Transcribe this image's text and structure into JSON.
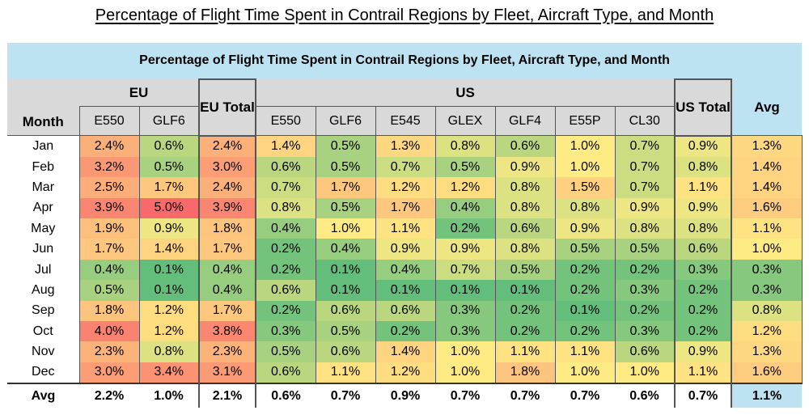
{
  "page_title": "Percentage of Flight Time Spent in Contrail Regions by Fleet, Aircraft Type, and Month",
  "chart_data": {
    "type": "table",
    "title": "Percentage of Flight Time Spent in Contrail Regions by Fleet, Aircraft Type, and Month",
    "headers": {
      "month": "Month",
      "eu_group": "EU",
      "us_group": "US",
      "eu_total": "EU Total",
      "us_total": "US Total",
      "avg": "Avg",
      "eu_types": [
        "E550",
        "GLF6"
      ],
      "us_types": [
        "E550",
        "GLF6",
        "E545",
        "GLEX",
        "GLF4",
        "E55P",
        "CL30"
      ]
    },
    "rows": [
      {
        "month": "Jan",
        "eu": [
          2.4,
          0.6
        ],
        "eu_total": 2.4,
        "us": [
          1.4,
          0.5,
          1.3,
          0.8,
          0.6,
          1.0,
          0.7
        ],
        "us_total": 0.9,
        "avg": 1.3
      },
      {
        "month": "Feb",
        "eu": [
          3.2,
          0.5
        ],
        "eu_total": 3.0,
        "us": [
          0.6,
          0.5,
          0.7,
          0.5,
          0.9,
          1.0,
          0.7
        ],
        "us_total": 0.8,
        "avg": 1.4
      },
      {
        "month": "Mar",
        "eu": [
          2.5,
          1.7
        ],
        "eu_total": 2.4,
        "us": [
          0.7,
          1.7,
          1.2,
          1.2,
          0.8,
          1.5,
          0.7
        ],
        "us_total": 1.1,
        "avg": 1.4
      },
      {
        "month": "Apr",
        "eu": [
          3.9,
          5.0
        ],
        "eu_total": 3.9,
        "us": [
          0.8,
          0.5,
          1.7,
          0.4,
          0.8,
          0.8,
          0.9
        ],
        "us_total": 0.9,
        "avg": 1.6
      },
      {
        "month": "May",
        "eu": [
          1.9,
          0.9
        ],
        "eu_total": 1.8,
        "us": [
          0.4,
          1.0,
          1.1,
          0.2,
          0.6,
          0.9,
          0.8
        ],
        "us_total": 0.8,
        "avg": 1.1
      },
      {
        "month": "Jun",
        "eu": [
          1.7,
          1.4
        ],
        "eu_total": 1.7,
        "us": [
          0.2,
          0.4,
          0.9,
          0.9,
          0.8,
          0.5,
          0.5
        ],
        "us_total": 0.6,
        "avg": 1.0
      },
      {
        "month": "Jul",
        "eu": [
          0.4,
          0.1
        ],
        "eu_total": 0.4,
        "us": [
          0.2,
          0.1,
          0.4,
          0.7,
          0.5,
          0.2,
          0.2
        ],
        "us_total": 0.3,
        "avg": 0.3
      },
      {
        "month": "Aug",
        "eu": [
          0.5,
          0.1
        ],
        "eu_total": 0.4,
        "us": [
          0.6,
          0.1,
          0.1,
          0.1,
          0.1,
          0.2,
          0.3
        ],
        "us_total": 0.2,
        "avg": 0.3
      },
      {
        "month": "Sep",
        "eu": [
          1.8,
          1.2
        ],
        "eu_total": 1.7,
        "us": [
          0.2,
          0.6,
          0.6,
          0.3,
          0.2,
          0.1,
          0.2
        ],
        "us_total": 0.2,
        "avg": 0.8
      },
      {
        "month": "Oct",
        "eu": [
          4.0,
          1.2
        ],
        "eu_total": 3.8,
        "us": [
          0.3,
          0.5,
          0.2,
          0.3,
          0.2,
          0.2,
          0.3
        ],
        "us_total": 0.2,
        "avg": 1.2
      },
      {
        "month": "Nov",
        "eu": [
          2.3,
          0.8
        ],
        "eu_total": 2.3,
        "us": [
          0.5,
          0.6,
          1.4,
          1.0,
          1.1,
          1.1,
          0.6
        ],
        "us_total": 0.9,
        "avg": 1.3
      },
      {
        "month": "Dec",
        "eu": [
          3.0,
          3.4
        ],
        "eu_total": 3.1,
        "us": [
          0.6,
          1.1,
          1.2,
          1.0,
          1.8,
          1.0,
          1.0
        ],
        "us_total": 1.1,
        "avg": 1.6
      }
    ],
    "avg_row": {
      "label": "Avg",
      "eu": [
        2.2,
        1.0
      ],
      "eu_total": 2.1,
      "us": [
        0.6,
        0.7,
        0.9,
        0.7,
        0.7,
        0.7,
        0.6
      ],
      "us_total": 0.7,
      "avg": 1.1
    },
    "color_scale": {
      "low": "#63be7b",
      "mid": "#ffeb84",
      "high": "#f8696b",
      "min": 0.1,
      "max": 5.0,
      "mid_value": 1.0
    }
  }
}
